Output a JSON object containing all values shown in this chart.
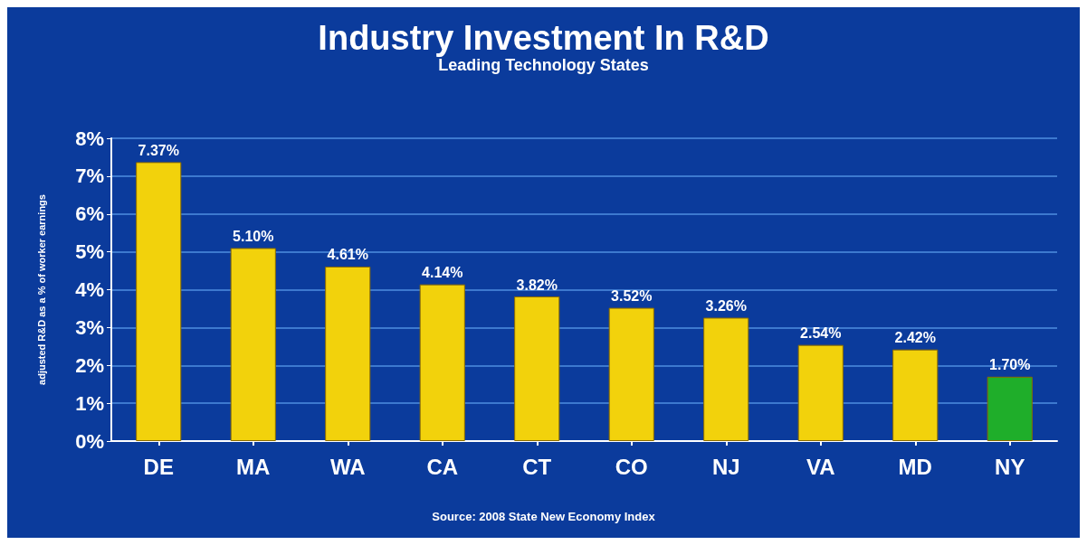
{
  "chart_data": {
    "type": "bar",
    "title": "Industry Investment In R&D",
    "subtitle": "Leading Technology States",
    "ylabel": "adjusted R&D as a % of worker earnings",
    "categories": [
      "DE",
      "MA",
      "WA",
      "CA",
      "CT",
      "CO",
      "NJ",
      "VA",
      "MD",
      "NY"
    ],
    "values": [
      7.37,
      5.1,
      4.61,
      4.14,
      3.82,
      3.52,
      3.26,
      2.54,
      2.42,
      1.7
    ],
    "value_labels": [
      "7.37%",
      "5.10%",
      "4.61%",
      "4.14%",
      "3.82%",
      "3.52%",
      "3.26%",
      "2.54%",
      "2.42%",
      "1.70%"
    ],
    "colors": [
      "#f2d20c",
      "#f2d20c",
      "#f2d20c",
      "#f2d20c",
      "#f2d20c",
      "#f2d20c",
      "#f2d20c",
      "#f2d20c",
      "#f2d20c",
      "#1fae2a"
    ],
    "ylim": [
      0,
      8
    ],
    "yticks": [
      {
        "value": 0,
        "label": "0%"
      },
      {
        "value": 1,
        "label": "1%"
      },
      {
        "value": 2,
        "label": "2%"
      },
      {
        "value": 3,
        "label": "3%"
      },
      {
        "value": 4,
        "label": "4%"
      },
      {
        "value": 5,
        "label": "5%"
      },
      {
        "value": 6,
        "label": "6%"
      },
      {
        "value": 7,
        "label": "7%"
      },
      {
        "value": 8,
        "label": "8%"
      }
    ],
    "grid": "y",
    "annotations": [
      "Source: 2008 State New Economy Index"
    ]
  }
}
